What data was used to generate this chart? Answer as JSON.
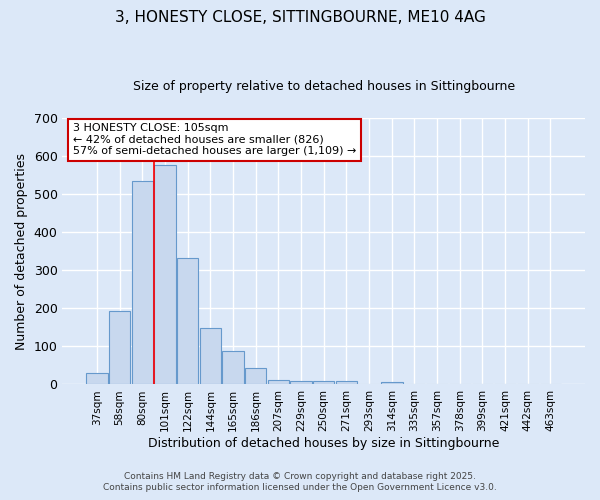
{
  "title": "3, HONESTY CLOSE, SITTINGBOURNE, ME10 4AG",
  "subtitle": "Size of property relative to detached houses in Sittingbourne",
  "xlabel": "Distribution of detached houses by size in Sittingbourne",
  "ylabel": "Number of detached properties",
  "categories": [
    "37sqm",
    "58sqm",
    "80sqm",
    "101sqm",
    "122sqm",
    "144sqm",
    "165sqm",
    "186sqm",
    "207sqm",
    "229sqm",
    "250sqm",
    "271sqm",
    "293sqm",
    "314sqm",
    "335sqm",
    "357sqm",
    "378sqm",
    "399sqm",
    "421sqm",
    "442sqm",
    "463sqm"
  ],
  "values": [
    30,
    193,
    535,
    575,
    332,
    147,
    87,
    42,
    13,
    9,
    8,
    8,
    0,
    6,
    0,
    0,
    0,
    0,
    0,
    0,
    0
  ],
  "bar_color": "#c8d8ee",
  "bar_edge_color": "#6699cc",
  "background_color": "#dce8f8",
  "grid_color": "#ffffff",
  "red_line_index": 3,
  "annotation_text": "3 HONESTY CLOSE: 105sqm\n← 42% of detached houses are smaller (826)\n57% of semi-detached houses are larger (1,109) →",
  "annotation_box_color": "#ffffff",
  "annotation_box_edge_color": "#cc0000",
  "ylim": [
    0,
    700
  ],
  "yticks": [
    0,
    100,
    200,
    300,
    400,
    500,
    600,
    700
  ],
  "footer1": "Contains HM Land Registry data © Crown copyright and database right 2025.",
  "footer2": "Contains public sector information licensed under the Open Government Licence v3.0."
}
